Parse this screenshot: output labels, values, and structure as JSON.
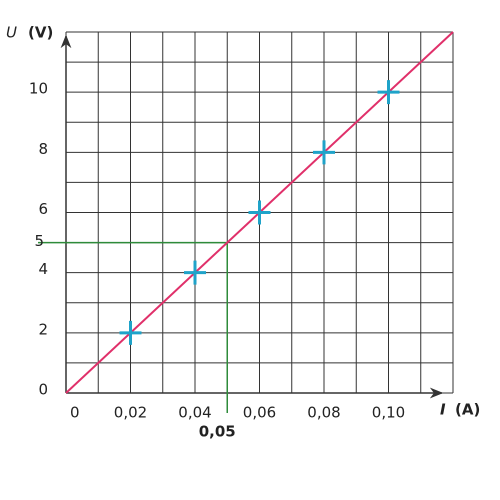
{
  "chart_data": {
    "type": "scatter",
    "x": [
      0.02,
      0.04,
      0.06,
      0.08,
      0.1
    ],
    "values": [
      2,
      4,
      6,
      8,
      10
    ],
    "color": "#1fa3c9",
    "xlim": [
      0,
      0.12
    ],
    "ylim": [
      0,
      12
    ],
    "xticks": [
      0,
      {
        "value": 0.02,
        "label": "0,02"
      },
      {
        "value": 0.04,
        "label": "0,04"
      },
      {
        "value": 0.06,
        "label": "0,06"
      },
      {
        "value": 0.08,
        "label": "0,08"
      },
      {
        "value": 0.1,
        "label": "0,10"
      }
    ],
    "yticks": [
      0,
      2,
      4,
      6,
      8,
      10
    ],
    "grid": true,
    "x_label": {
      "symbol": "I",
      "unit": "(A)"
    },
    "y_label": {
      "symbol": "U",
      "unit": "(V)"
    },
    "fit_line": {
      "x": [
        0,
        0.12
      ],
      "y": [
        0,
        12
      ],
      "color": "#e0306a"
    },
    "annotation": {
      "x": {
        "value": 0.05,
        "label": "0,05"
      },
      "y": 5,
      "color": "#2e8b3a"
    }
  }
}
